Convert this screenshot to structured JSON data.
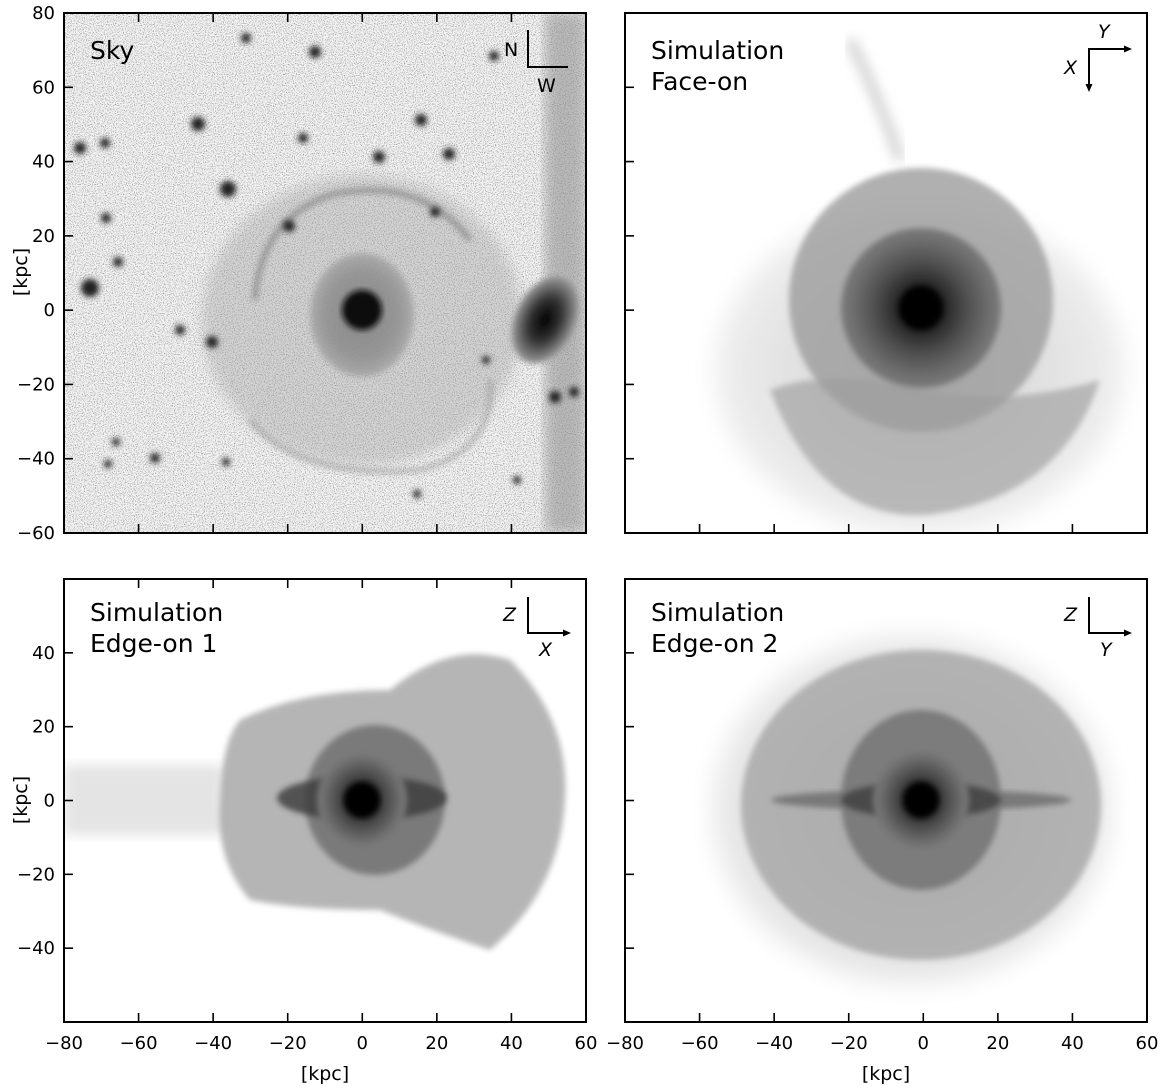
{
  "figure": {
    "axis_label": "[kpc]",
    "x_ticks": [
      "−80",
      "−60",
      "−40",
      "−20",
      "0",
      "20",
      "40",
      "60"
    ],
    "top_y_ticks": [
      "80",
      "60",
      "40",
      "20",
      "0",
      "−20",
      "−40",
      "−60"
    ],
    "bottom_y_ticks": [
      "40",
      "20",
      "0",
      "−20",
      "−40"
    ],
    "panels": [
      {
        "id": "sky",
        "label_lines": [
          "Sky"
        ],
        "compass": {
          "up": "N",
          "side": "W"
        }
      },
      {
        "id": "face-on",
        "label_lines": [
          "Simulation",
          "Face-on"
        ],
        "compass": {
          "up": "Y",
          "side": "X"
        }
      },
      {
        "id": "edge-on-1",
        "label_lines": [
          "Simulation",
          "Edge-on 1"
        ],
        "compass": {
          "up": "Z",
          "side": "X"
        }
      },
      {
        "id": "edge-on-2",
        "label_lines": [
          "Simulation",
          "Edge-on 2"
        ],
        "compass": {
          "up": "Z",
          "side": "Y"
        }
      }
    ]
  }
}
